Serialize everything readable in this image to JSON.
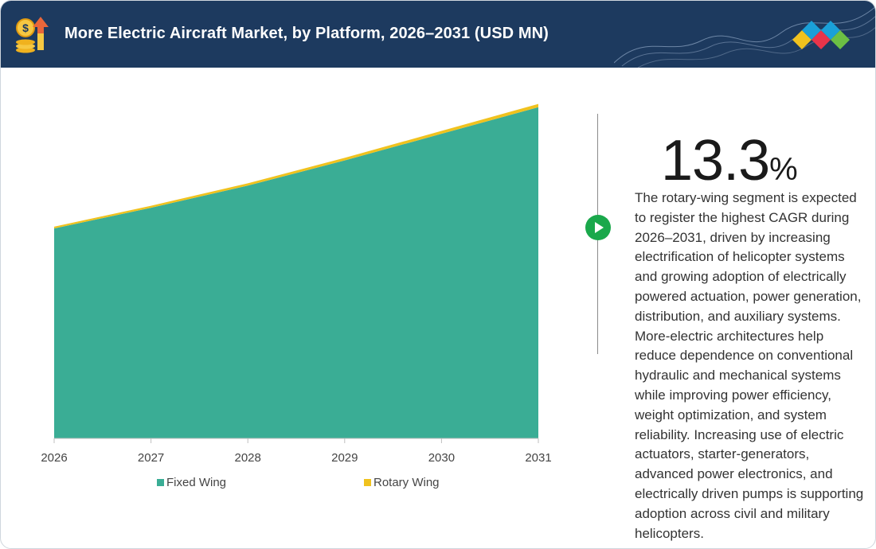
{
  "header": {
    "title": "More Electric Aircraft Market, by Platform, 2026–2031 (USD MN)",
    "background_color": "#1d3a5f",
    "left_icon": "money-growth-icon",
    "right_icon": "brand-diamonds-logo"
  },
  "highlight": {
    "cagr_value": "13.3",
    "cagr_unit": "%",
    "description": "The rotary-wing segment is expected to register the highest CAGR during 2026–2031, driven by increasing electrification of helicopter systems and growing adoption of electrically powered actuation, power generation, distribution, and auxiliary systems. More-electric architectures help reduce dependence on conventional hydraulic and mechanical systems while improving power efficiency, weight optimization, and system reliability. Increasing use of electric actuators, starter-generators, advanced power electronics, and electrically driven pumps is supporting adoption across civil and military helicopters.",
    "arrow_icon": "play-arrow-icon",
    "arrow_color": "#1aa84b"
  },
  "chart_data": {
    "type": "area",
    "stacked": true,
    "x": [
      "2026",
      "2027",
      "2028",
      "2029",
      "2030",
      "2031"
    ],
    "series": [
      {
        "name": "Fixed Wing",
        "values": [
          7100,
          7800,
          8550,
          9400,
          10300,
          11200
        ],
        "color": "#3aad95"
      },
      {
        "name": "Rotary Wing",
        "values": [
          60,
          68,
          77,
          87,
          99,
          112
        ],
        "color": "#f0c21e"
      }
    ],
    "ylim": [
      0,
      12000
    ],
    "legend_position": "bottom",
    "grid": false,
    "title": "",
    "xlabel": "",
    "ylabel": ""
  }
}
